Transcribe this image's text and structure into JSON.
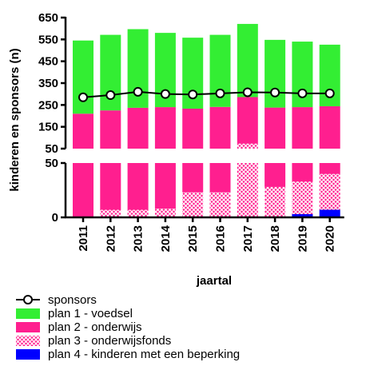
{
  "chart_data": {
    "type": "bar",
    "stacked": true,
    "broken_y_axis": true,
    "xlabel": "jaartal",
    "ylabel": "kinderen en sponsors (n)",
    "categories": [
      "2011",
      "2012",
      "2013",
      "2014",
      "2015",
      "2016",
      "2017",
      "2018",
      "2019",
      "2020"
    ],
    "y_segments": {
      "lower": {
        "ylim": [
          0,
          50
        ],
        "ticks": [
          "0",
          "50"
        ]
      },
      "upper": {
        "ylim": [
          50,
          650
        ],
        "ticks": [
          "50",
          "150",
          "250",
          "350",
          "450",
          "550",
          "650"
        ]
      }
    },
    "series": [
      {
        "name": "plan 4 - kinderen met een beperking",
        "kind": "bar",
        "color": "#0000ff",
        "pattern": "solid",
        "values": [
          0,
          0,
          0,
          0,
          0,
          0,
          0,
          0,
          3,
          7
        ]
      },
      {
        "name": "plan 3 - onderwijsfonds",
        "kind": "bar",
        "color": "#ff1f8f",
        "pattern": "crosshatch",
        "values": [
          0,
          7,
          7,
          8,
          23,
          23,
          73,
          28,
          30,
          33
        ]
      },
      {
        "name": "plan 2 - onderwijs",
        "kind": "bar",
        "color": "#ff1f8f",
        "pattern": "solid",
        "values": [
          210,
          218,
          230,
          232,
          210,
          218,
          213,
          210,
          207,
          204
        ]
      },
      {
        "name": "plan 1 - voedsel",
        "kind": "bar",
        "color": "#33ee33",
        "pattern": "solid",
        "values": [
          335,
          346,
          360,
          340,
          325,
          330,
          335,
          310,
          300,
          282
        ]
      },
      {
        "name": "sponsors",
        "kind": "line",
        "color": "#000000",
        "marker": "open-circle",
        "values": [
          285,
          295,
          310,
          300,
          298,
          303,
          308,
          307,
          303,
          303
        ]
      }
    ],
    "legend": {
      "placement": "bottom-left",
      "order": [
        "sponsors",
        "plan 1 - voedsel",
        "plan 2 - onderwijs",
        "plan 3 - onderwijsfonds",
        "plan 4 - kinderen met een beperking"
      ]
    }
  }
}
